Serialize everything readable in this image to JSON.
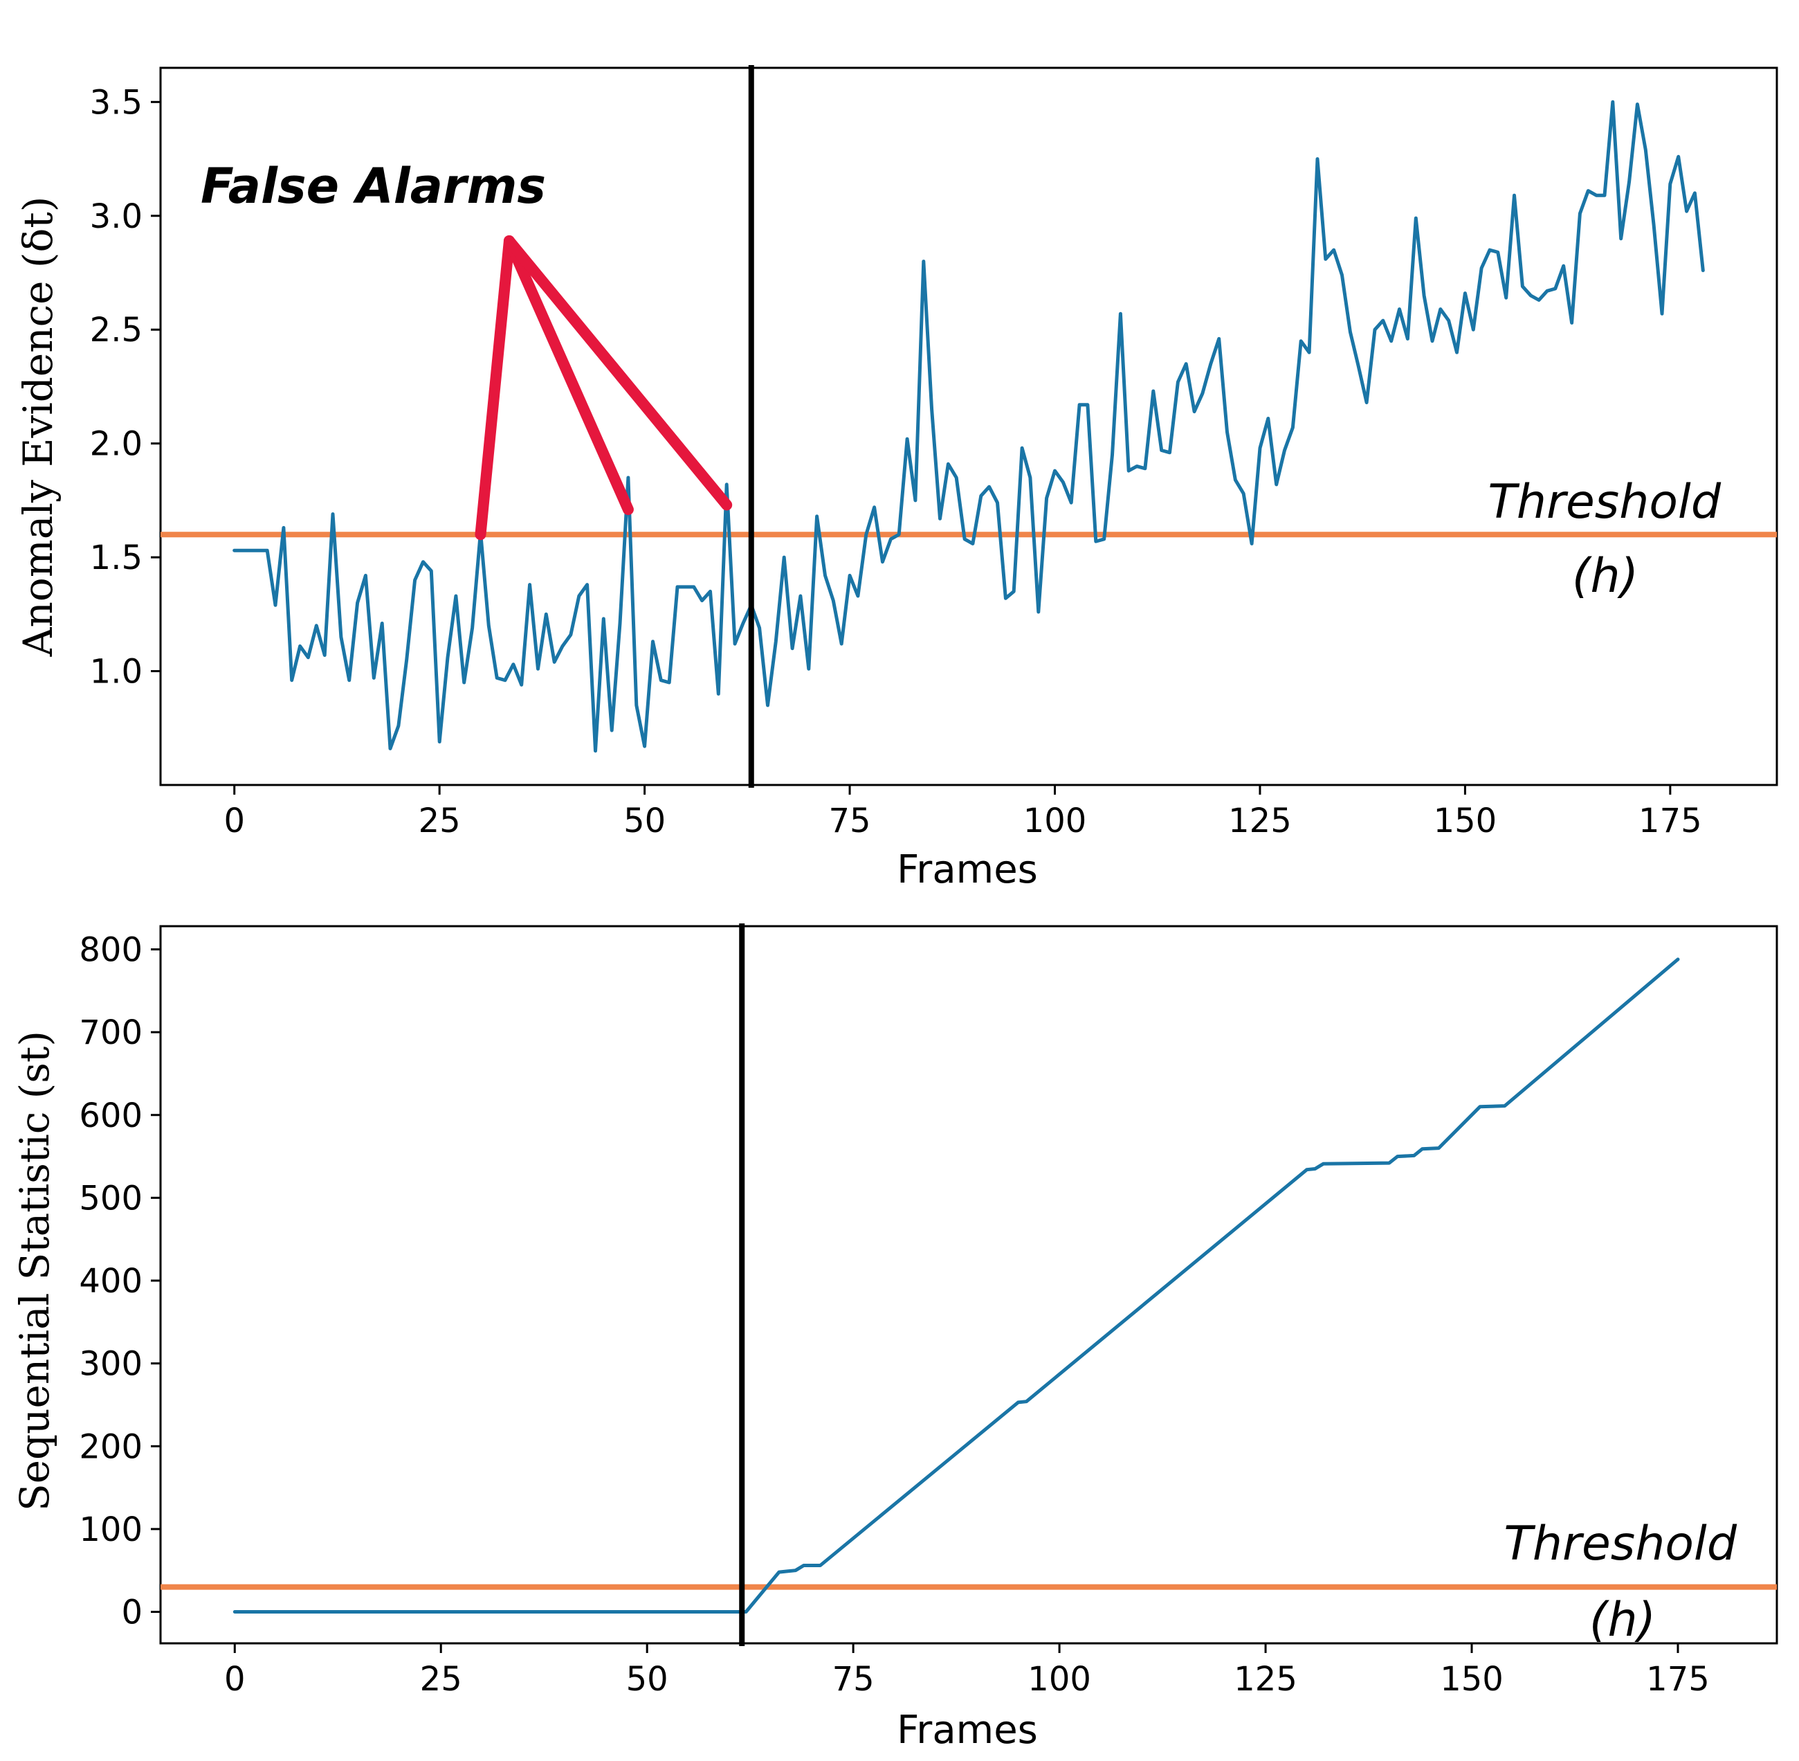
{
  "colors": {
    "series": "#1a75a6",
    "threshold": "#f0854a",
    "event_line": "#000000",
    "arrows": "#e5173d"
  },
  "chart_data": [
    {
      "type": "line",
      "xlabel": "Frames",
      "ylabel": "Anomaly Evidence (δt)",
      "xlim": [
        -9,
        188
      ],
      "ylim": [
        0.5,
        3.65
      ],
      "xticks": [
        0,
        25,
        50,
        75,
        100,
        125,
        150,
        175
      ],
      "yticks": [
        1.0,
        1.5,
        2.0,
        2.5,
        3.0,
        3.5
      ],
      "ytick_labels": [
        "1.0",
        "1.5",
        "2.0",
        "2.5",
        "3.0",
        "3.5"
      ],
      "grid": false,
      "threshold": 1.6,
      "threshold_label": [
        "Threshold",
        "(h)"
      ],
      "event_frame": 63,
      "annotation": "False Alarms",
      "arrow_targets": [
        {
          "x": 30,
          "y": 1.6
        },
        {
          "x": 48,
          "y": 1.71
        },
        {
          "x": 60,
          "y": 1.73
        }
      ],
      "arrow_origin": {
        "x": 33.5,
        "y": 2.89
      },
      "series": [
        {
          "x": [
            0,
            1,
            2,
            3,
            4,
            5,
            6,
            7,
            8,
            9,
            10,
            11,
            12,
            13,
            14,
            15,
            16,
            17,
            18,
            19,
            20,
            21,
            22,
            23,
            24,
            25,
            26,
            27,
            28,
            29,
            30,
            31,
            32,
            33,
            34,
            35,
            36,
            37,
            38,
            39,
            40,
            41,
            42,
            43,
            44,
            45,
            46,
            47,
            48,
            49,
            50,
            51,
            52,
            53,
            54,
            55,
            56,
            57,
            58,
            59,
            60,
            61,
            62,
            63,
            64,
            65,
            66,
            67,
            68,
            69,
            70,
            71,
            72,
            73,
            74,
            75,
            76,
            77,
            78,
            79,
            80,
            81,
            82,
            83,
            84,
            85,
            86,
            87,
            88,
            89,
            90,
            91,
            92,
            93,
            94,
            95,
            96,
            97,
            98,
            99,
            100,
            101,
            102,
            103,
            104,
            105,
            106,
            107,
            108,
            109,
            110,
            111,
            112,
            113,
            114,
            115,
            116,
            117,
            118,
            119,
            120,
            121,
            122,
            123,
            124,
            125,
            126,
            127,
            128,
            129,
            130,
            131,
            132,
            133,
            134,
            135,
            136,
            137,
            138,
            139,
            140,
            141,
            142,
            143,
            144,
            145,
            146,
            147,
            148,
            149,
            150,
            151,
            152,
            153,
            154,
            155,
            156,
            157,
            158,
            159,
            160,
            161,
            162,
            163,
            164,
            165,
            166,
            167,
            168,
            169,
            170,
            171,
            172,
            173,
            174,
            175,
            176,
            177,
            178,
            179
          ],
          "values": [
            1.53,
            1.53,
            1.53,
            1.53,
            1.53,
            1.29,
            1.63,
            0.96,
            1.11,
            1.06,
            1.2,
            1.07,
            1.69,
            1.15,
            0.96,
            1.3,
            1.42,
            0.97,
            1.21,
            0.66,
            0.76,
            1.05,
            1.4,
            1.48,
            1.44,
            0.69,
            1.06,
            1.33,
            0.95,
            1.19,
            1.61,
            1.2,
            0.97,
            0.96,
            1.03,
            0.94,
            1.38,
            1.01,
            1.25,
            1.04,
            1.11,
            1.16,
            1.33,
            1.38,
            0.65,
            1.23,
            0.74,
            1.21,
            1.85,
            0.85,
            0.67,
            1.13,
            0.96,
            0.95,
            1.37,
            1.37,
            1.37,
            1.31,
            1.35,
            0.9,
            1.82,
            1.12,
            1.21,
            1.29,
            1.19,
            0.85,
            1.13,
            1.5,
            1.1,
            1.33,
            1.01,
            1.68,
            1.42,
            1.31,
            1.12,
            1.42,
            1.33,
            1.6,
            1.72,
            1.48,
            1.58,
            1.6,
            2.02,
            1.75,
            2.8,
            2.15,
            1.67,
            1.91,
            1.85,
            1.58,
            1.56,
            1.77,
            1.81,
            1.74,
            1.32,
            1.35,
            1.98,
            1.85,
            1.26,
            1.76,
            1.88,
            1.83,
            1.74,
            2.17,
            2.17,
            1.57,
            1.58,
            1.95,
            2.57,
            1.88,
            1.9,
            1.89,
            2.23,
            1.97,
            1.96,
            2.27,
            2.35,
            2.14,
            2.22,
            2.35,
            2.46,
            2.05,
            1.84,
            1.78,
            1.56,
            1.98,
            2.11,
            1.82,
            1.97,
            2.07,
            2.45,
            2.4,
            3.25,
            2.81,
            2.85,
            2.74,
            2.49,
            2.34,
            2.18,
            2.5,
            2.54,
            2.45,
            2.59,
            2.46,
            2.99,
            2.65,
            2.45,
            2.59,
            2.54,
            2.4,
            2.66,
            2.5,
            2.77,
            2.85,
            2.84,
            2.64,
            3.09,
            2.69,
            2.65,
            2.63,
            2.67,
            2.68,
            2.78,
            2.53,
            3.01,
            3.11,
            3.09,
            3.09,
            3.5,
            2.9,
            3.15,
            3.49,
            3.29,
            2.96,
            2.57,
            3.14,
            3.26,
            3.02,
            3.1,
            2.76
          ]
        }
      ]
    },
    {
      "type": "line",
      "xlabel": "Frames",
      "ylabel": "Sequential Statistic (st)",
      "xlim": [
        -9,
        187
      ],
      "ylim": [
        -38,
        828
      ],
      "xticks": [
        0,
        25,
        50,
        75,
        100,
        125,
        150,
        175
      ],
      "yticks": [
        0,
        100,
        200,
        300,
        400,
        500,
        600,
        700,
        800
      ],
      "grid": false,
      "threshold": 30,
      "threshold_label": [
        "Threshold",
        "(h)"
      ],
      "event_frame": 61.5,
      "series": [
        {
          "x": [
            0,
            58,
            60,
            62,
            66,
            67,
            68,
            69,
            71,
            95,
            96,
            130,
            131,
            132,
            140,
            141,
            143,
            144,
            146,
            151,
            154,
            175
          ],
          "values": [
            0,
            0,
            0,
            0,
            48,
            49,
            50,
            56,
            56,
            253,
            254,
            534,
            535,
            541,
            542,
            550,
            551,
            559,
            560,
            610,
            611,
            788
          ]
        }
      ]
    }
  ]
}
